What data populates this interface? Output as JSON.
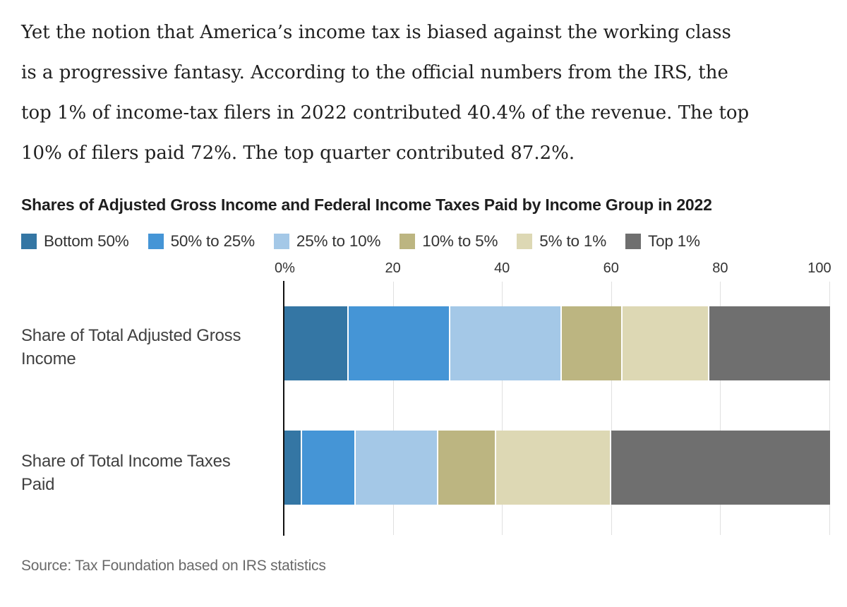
{
  "article": {
    "lines": [
      "Yet the notion that America’s income tax is biased against the working class",
      "is a progressive fantasy. According to the official numbers from the IRS, the",
      "top 1% of income-tax filers in 2022 contributed 40.4% of the revenue. The top",
      "10% of filers paid 72%. The top quarter contributed 87.2%."
    ]
  },
  "chart": {
    "title": "Shares of Adjusted Gross Income and Federal Income Taxes Paid by Income Group in 2022",
    "source": "Source: Tax Foundation based on IRS statistics"
  },
  "chart_data": {
    "type": "bar",
    "orientation": "horizontal-stacked",
    "title": "Shares of Adjusted Gross Income and Federal Income Taxes Paid by Income Group in 2022",
    "xlabel": "",
    "ylabel": "",
    "xlim": [
      0,
      100
    ],
    "x_tick_labels": [
      "0%",
      "20",
      "40",
      "60",
      "80",
      "100"
    ],
    "x_tick_values": [
      0,
      20,
      40,
      60,
      80,
      100
    ],
    "grid": true,
    "legend_position": "top",
    "categories": [
      "Bottom 50%",
      "50% to 25%",
      "25% to 10%",
      "10% to 5%",
      "5% to 1%",
      "Top 1%"
    ],
    "category_colors": [
      "#3476A4",
      "#4595D6",
      "#A4C8E7",
      "#BCB581",
      "#DDD8B4",
      "#6F6F6F"
    ],
    "series": [
      {
        "name": "Share of Total Adjusted Gross Income",
        "label_lines": [
          "Share of Total Adjusted Gross",
          "Income"
        ],
        "values": [
          11.5,
          18.6,
          20.5,
          11.1,
          15.9,
          22.4
        ]
      },
      {
        "name": "Share of Total Income Taxes Paid",
        "label_lines": [
          "Share of Total Income Taxes",
          "Paid"
        ],
        "values": [
          3.0,
          9.8,
          15.2,
          10.6,
          21.0,
          40.4
        ]
      }
    ],
    "source": "Source: Tax Foundation based on IRS statistics"
  }
}
